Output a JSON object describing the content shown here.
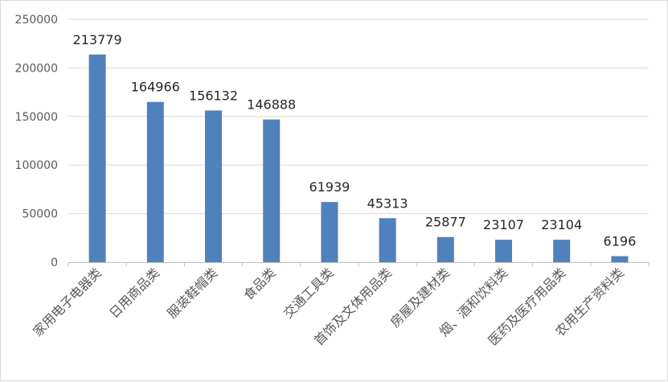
{
  "chart_data": {
    "type": "bar",
    "title": "",
    "xlabel": "",
    "ylabel": "",
    "categories": [
      "家用电子电器类",
      "日用商品类",
      "服装鞋帽类",
      "食品类",
      "交通工具类",
      "首饰及文体用品类",
      "房屋及建材类",
      "烟、酒和饮料类",
      "医药及医疗用品类",
      "农用生产资料类"
    ],
    "values": [
      213779,
      164966,
      156132,
      146888,
      61939,
      45313,
      25877,
      23107,
      23104,
      6196
    ],
    "data_labels": [
      "213779",
      "164966",
      "156132",
      "146888",
      "61939",
      "45313",
      "25877",
      "23107",
      "23104",
      "6196"
    ],
    "ylim": [
      0,
      250000
    ],
    "yticks": [
      0,
      50000,
      100000,
      150000,
      200000,
      250000
    ],
    "ytick_labels": [
      "0",
      "50000",
      "100000",
      "150000",
      "200000",
      "250000"
    ],
    "grid": true,
    "legend": "none",
    "colors": {
      "bar": "#4f81bd",
      "grid": "#d9d9d9",
      "axis": "#bfbfbf"
    }
  }
}
